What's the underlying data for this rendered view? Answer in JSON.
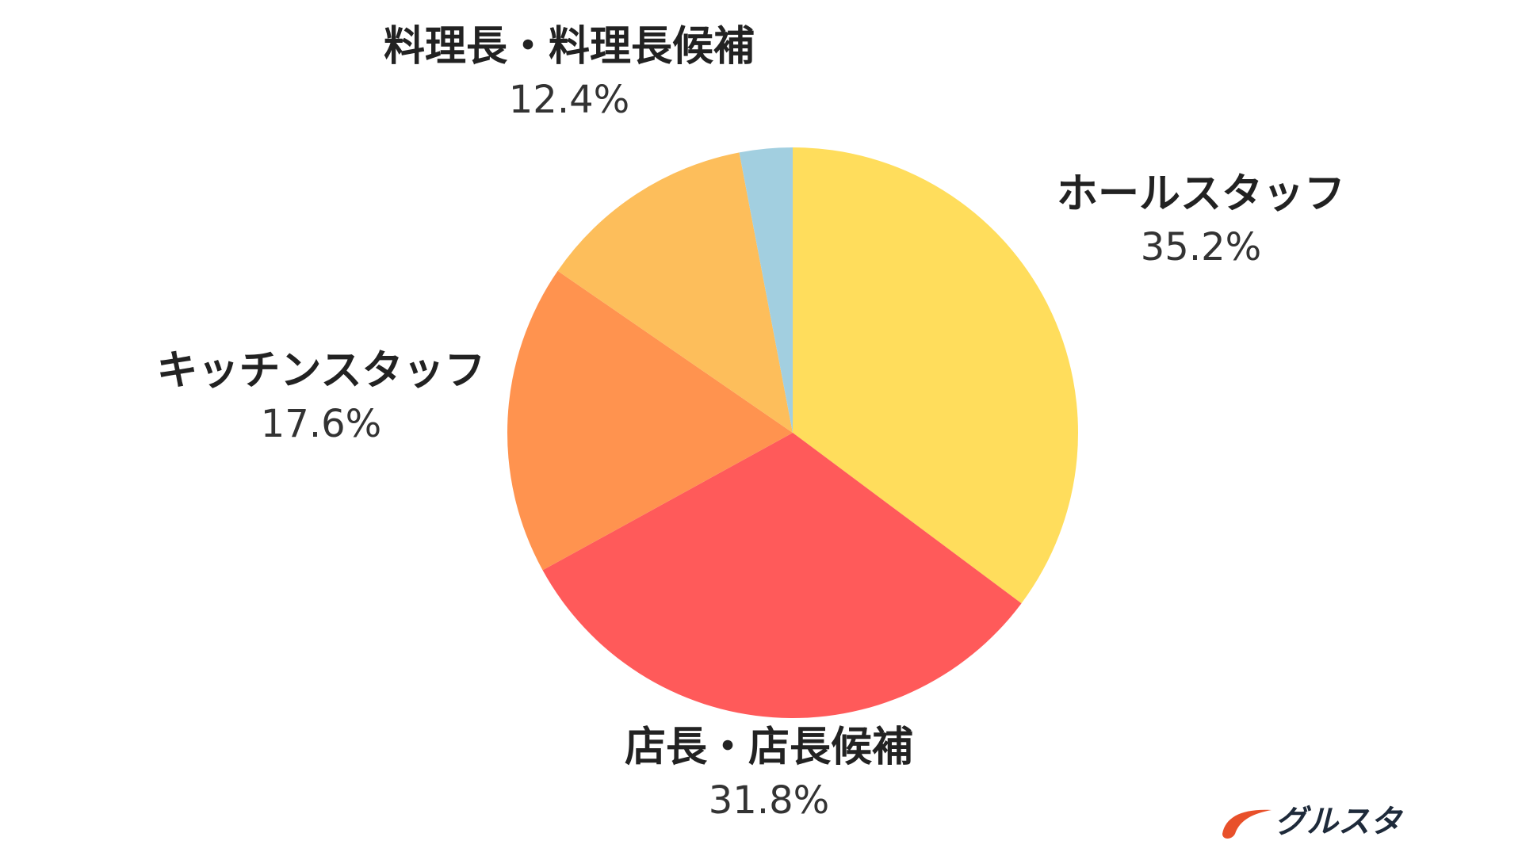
{
  "chart_data": {
    "type": "pie",
    "start_angle_deg": 0,
    "direction": "clockwise",
    "slices": [
      {
        "label": "ホールスタッフ",
        "value": 35.2,
        "display": "35.2%",
        "color": "#FFDD5C"
      },
      {
        "label": "店長・店長候補",
        "value": 31.8,
        "display": "31.8%",
        "color": "#FF5A5A"
      },
      {
        "label": "キッチンスタッフ",
        "value": 17.6,
        "display": "17.6%",
        "color": "#FF934F"
      },
      {
        "label": "料理長・料理長候補",
        "value": 12.4,
        "display": "12.4%",
        "color": "#FDBE5B"
      },
      {
        "label": "",
        "value": 3.0,
        "display": "",
        "color": "#A2CFE0"
      }
    ]
  },
  "logo": {
    "text": "グルスタ",
    "mark_color": "#E8502A"
  }
}
